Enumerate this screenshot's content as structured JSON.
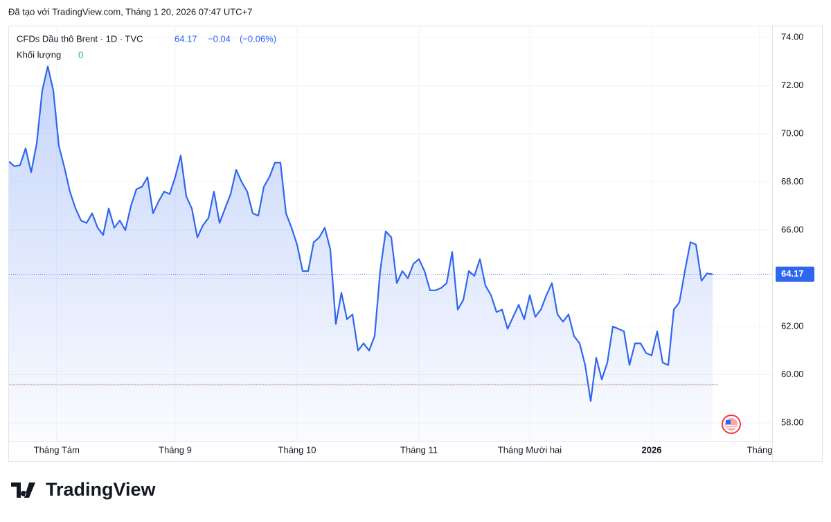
{
  "header": "Đã tạo với TradingView.com, Tháng 1 20, 2026 07:47 UTC+7",
  "footer_logo": "TradingView",
  "chart_data": {
    "type": "line",
    "symbol": "CFDs Dầu thô Brent · 1D · TVC",
    "last_price": 64.17,
    "change": "−0.04",
    "change_percent": "(−0.06%)",
    "volume_label": "Khối lượng",
    "volume_value": "0",
    "color": "#2f66f0",
    "reference_line": 59.6,
    "values": [
      68.85,
      68.65,
      68.7,
      69.4,
      68.4,
      69.6,
      71.8,
      72.8,
      71.8,
      69.5,
      68.6,
      67.6,
      66.9,
      66.4,
      66.3,
      66.7,
      66.1,
      65.8,
      66.9,
      66.1,
      66.4,
      66.0,
      67.0,
      67.7,
      67.8,
      68.2,
      66.7,
      67.2,
      67.6,
      67.5,
      68.2,
      69.1,
      67.4,
      66.9,
      65.7,
      66.2,
      66.5,
      67.6,
      66.3,
      66.9,
      67.5,
      68.5,
      68.0,
      67.6,
      66.7,
      66.6,
      67.8,
      68.2,
      68.8,
      68.8,
      66.7,
      66.1,
      65.4,
      64.3,
      64.3,
      65.5,
      65.7,
      66.1,
      65.2,
      62.1,
      63.4,
      62.3,
      62.5,
      61.0,
      61.3,
      61.0,
      61.6,
      64.3,
      65.95,
      65.7,
      63.8,
      64.3,
      64.0,
      64.6,
      64.8,
      64.3,
      63.5,
      63.5,
      63.6,
      63.8,
      65.1,
      62.7,
      63.1,
      64.3,
      64.1,
      64.8,
      63.7,
      63.3,
      62.6,
      62.7,
      61.9,
      62.4,
      62.9,
      62.3,
      63.3,
      62.4,
      62.7,
      63.3,
      63.8,
      62.5,
      62.2,
      62.5,
      61.6,
      61.3,
      60.4,
      58.9,
      60.7,
      59.8,
      60.5,
      62.0,
      61.9,
      61.8,
      60.4,
      61.3,
      61.3,
      60.9,
      60.8,
      61.8,
      60.5,
      60.4,
      62.7,
      63.0,
      64.3,
      65.5,
      65.4,
      63.9,
      64.2,
      64.17
    ],
    "xlim": [
      0,
      137.75
    ],
    "xticks": [
      {
        "value": 8.6,
        "label": "Tháng Tám"
      },
      {
        "value": 30,
        "label": "Tháng 9"
      },
      {
        "value": 52,
        "label": "Tháng 10"
      },
      {
        "value": 74,
        "label": "Tháng 11"
      },
      {
        "value": 94,
        "label": "Tháng Mười hai"
      },
      {
        "value": 116,
        "label": "2026"
      },
      {
        "value": 135.5,
        "label": "Tháng"
      }
    ],
    "ylim": [
      57.25,
      74.49
    ],
    "yticks": [
      {
        "value": 58,
        "label": "58.00"
      },
      {
        "value": 60,
        "label": "60.00"
      },
      {
        "value": 62,
        "label": "62.00"
      },
      {
        "value": 64,
        "label": "64.00"
      },
      {
        "value": 66,
        "label": "66.00"
      },
      {
        "value": 68,
        "label": "68.00"
      },
      {
        "value": 70,
        "label": "70.00"
      },
      {
        "value": 72,
        "label": "72.00"
      },
      {
        "value": 74,
        "label": "74.00"
      }
    ],
    "grid": true
  }
}
